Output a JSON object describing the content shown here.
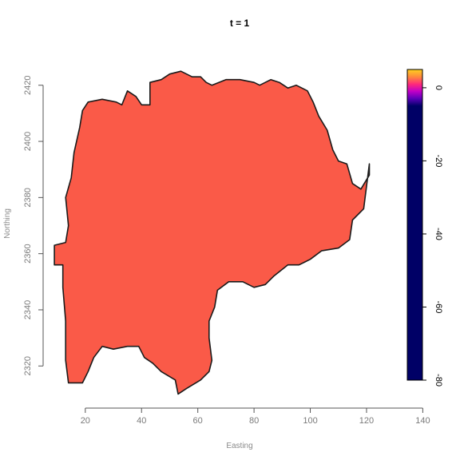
{
  "chart_data": {
    "type": "heatmap",
    "title": "t = 1",
    "xlabel": "Easting",
    "ylabel": "Northing",
    "xlim": [
      5,
      145
    ],
    "ylim": [
      2305,
      2435
    ],
    "x_ticks": [
      20,
      40,
      60,
      80,
      100,
      120,
      140
    ],
    "y_ticks": [
      2320,
      2340,
      2360,
      2380,
      2400,
      2420
    ],
    "grid": false,
    "legend": "right",
    "fill_color": "#fa5a48",
    "outline_color": "#1a1a1a",
    "region_boundary": [
      [
        14,
        2314
      ],
      [
        13,
        2322
      ],
      [
        13,
        2336
      ],
      [
        12,
        2348
      ],
      [
        12,
        2356
      ],
      [
        9,
        2356
      ],
      [
        9,
        2363
      ],
      [
        13,
        2364
      ],
      [
        14,
        2370
      ],
      [
        13,
        2380
      ],
      [
        15,
        2387
      ],
      [
        16,
        2396
      ],
      [
        18,
        2405
      ],
      [
        19,
        2411
      ],
      [
        21,
        2414
      ],
      [
        26,
        2415
      ],
      [
        31,
        2414
      ],
      [
        33,
        2413
      ],
      [
        35,
        2418
      ],
      [
        38,
        2416
      ],
      [
        40,
        2413
      ],
      [
        43,
        2413
      ],
      [
        43,
        2421
      ],
      [
        47,
        2422
      ],
      [
        50,
        2424
      ],
      [
        54,
        2425
      ],
      [
        58,
        2423
      ],
      [
        61,
        2423
      ],
      [
        63,
        2421
      ],
      [
        65,
        2420
      ],
      [
        70,
        2422
      ],
      [
        75,
        2422
      ],
      [
        80,
        2421
      ],
      [
        82,
        2420
      ],
      [
        86,
        2422
      ],
      [
        89,
        2421
      ],
      [
        92,
        2419
      ],
      [
        95,
        2420
      ],
      [
        99,
        2418
      ],
      [
        101,
        2414
      ],
      [
        103,
        2409
      ],
      [
        106,
        2404
      ],
      [
        108,
        2397
      ],
      [
        110,
        2393
      ],
      [
        113,
        2392
      ],
      [
        115,
        2385
      ],
      [
        118,
        2383
      ],
      [
        121,
        2388
      ],
      [
        121,
        2392
      ],
      [
        119,
        2376
      ],
      [
        115,
        2372
      ],
      [
        114,
        2365
      ],
      [
        110,
        2362
      ],
      [
        104,
        2361
      ],
      [
        100,
        2358
      ],
      [
        96,
        2356
      ],
      [
        92,
        2356
      ],
      [
        87,
        2352
      ],
      [
        84,
        2349
      ],
      [
        80,
        2348
      ],
      [
        76,
        2350
      ],
      [
        71,
        2350
      ],
      [
        67,
        2347
      ],
      [
        66,
        2341
      ],
      [
        64,
        2336
      ],
      [
        64,
        2330
      ],
      [
        65,
        2322
      ],
      [
        64,
        2318
      ],
      [
        61,
        2315
      ],
      [
        56,
        2312
      ],
      [
        53,
        2310
      ],
      [
        52,
        2315
      ],
      [
        47,
        2318
      ],
      [
        44,
        2321
      ],
      [
        41,
        2323
      ],
      [
        39,
        2327
      ],
      [
        35,
        2327
      ],
      [
        30,
        2326
      ],
      [
        26,
        2327
      ],
      [
        23,
        2323
      ],
      [
        21,
        2318
      ],
      [
        19,
        2314
      ],
      [
        14,
        2314
      ]
    ],
    "colorbar": {
      "range": [
        -80,
        5
      ],
      "ticks": [
        0,
        -20,
        -40,
        -60,
        -80
      ],
      "stops": [
        {
          "value": 5,
          "color": "#ffd21e"
        },
        {
          "value": 3,
          "color": "#ff8a3c"
        },
        {
          "value": 1,
          "color": "#ff2a7a"
        },
        {
          "value": -1,
          "color": "#c000c8"
        },
        {
          "value": -3,
          "color": "#5a00b8"
        },
        {
          "value": -5,
          "color": "#000066"
        },
        {
          "value": -80,
          "color": "#000066"
        }
      ]
    }
  }
}
